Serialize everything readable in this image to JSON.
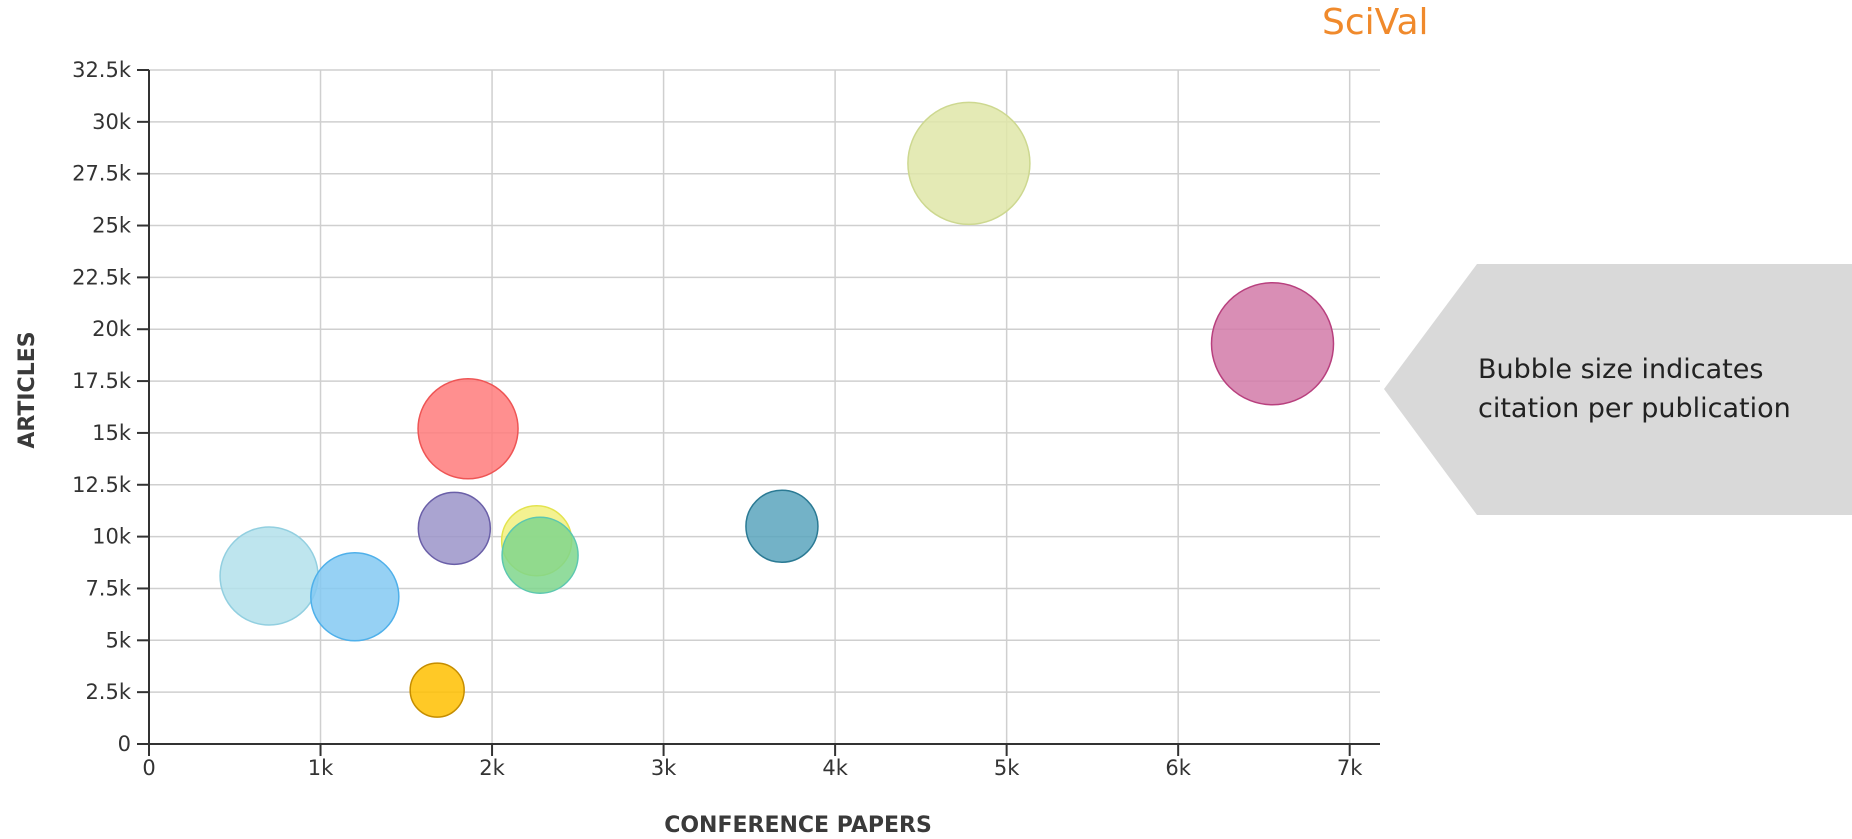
{
  "brand": {
    "text": "SciVal",
    "color": "#f08a2c"
  },
  "legend_note": {
    "text": "Bubble size indicates citation per publication"
  },
  "chart_data": {
    "type": "scatter",
    "xlabel": "CONFERENCE PAPERS",
    "ylabel": "ARTICLES",
    "xlim": [
      0,
      7200
    ],
    "ylim": [
      0,
      32500
    ],
    "x_ticks": [
      0,
      1000,
      2000,
      3000,
      4000,
      5000,
      6000,
      7000
    ],
    "x_tick_labels": [
      "0",
      "1k",
      "2k",
      "3k",
      "4k",
      "5k",
      "6k",
      "7k"
    ],
    "y_ticks": [
      0,
      2500,
      5000,
      7500,
      10000,
      12500,
      15000,
      17500,
      20000,
      22500,
      25000,
      27500,
      30000,
      32500
    ],
    "y_tick_labels": [
      "0",
      "2.5k",
      "5k",
      "7.5k",
      "10k",
      "12.5k",
      "15k",
      "17.5k",
      "20k",
      "22.5k",
      "25k",
      "27.5k",
      "30k",
      "32.5k"
    ],
    "grid": true,
    "bubble_size_meaning": "citation per publication",
    "points": [
      {
        "x": 4780,
        "y": 28000,
        "size": 61,
        "fill": "#dfe6a8",
        "stroke": "#cdd890"
      },
      {
        "x": 6550,
        "y": 19300,
        "size": 61,
        "fill": "#d27aa8",
        "stroke": "#b8407e"
      },
      {
        "x": 1860,
        "y": 15200,
        "size": 50,
        "fill": "#ff7b7b",
        "stroke": "#ee5555"
      },
      {
        "x": 1780,
        "y": 10400,
        "size": 36,
        "fill": "#9b94c9",
        "stroke": "#6a5fa8"
      },
      {
        "x": 2260,
        "y": 9800,
        "size": 35,
        "fill": "#f2f07e",
        "stroke": "#e3e34e"
      },
      {
        "x": 2280,
        "y": 9100,
        "size": 38,
        "fill": "#7fd68c",
        "stroke": "#5cc7b0"
      },
      {
        "x": 3690,
        "y": 10500,
        "size": 36,
        "fill": "#5aa5bd",
        "stroke": "#2b7a94"
      },
      {
        "x": 700,
        "y": 8100,
        "size": 49,
        "fill": "#b3e1eb",
        "stroke": "#92cfe0"
      },
      {
        "x": 1200,
        "y": 7100,
        "size": 44,
        "fill": "#84c9f2",
        "stroke": "#4fb0ea"
      },
      {
        "x": 1680,
        "y": 2600,
        "size": 27,
        "fill": "#ffbf00",
        "stroke": "#c58d00"
      }
    ]
  }
}
